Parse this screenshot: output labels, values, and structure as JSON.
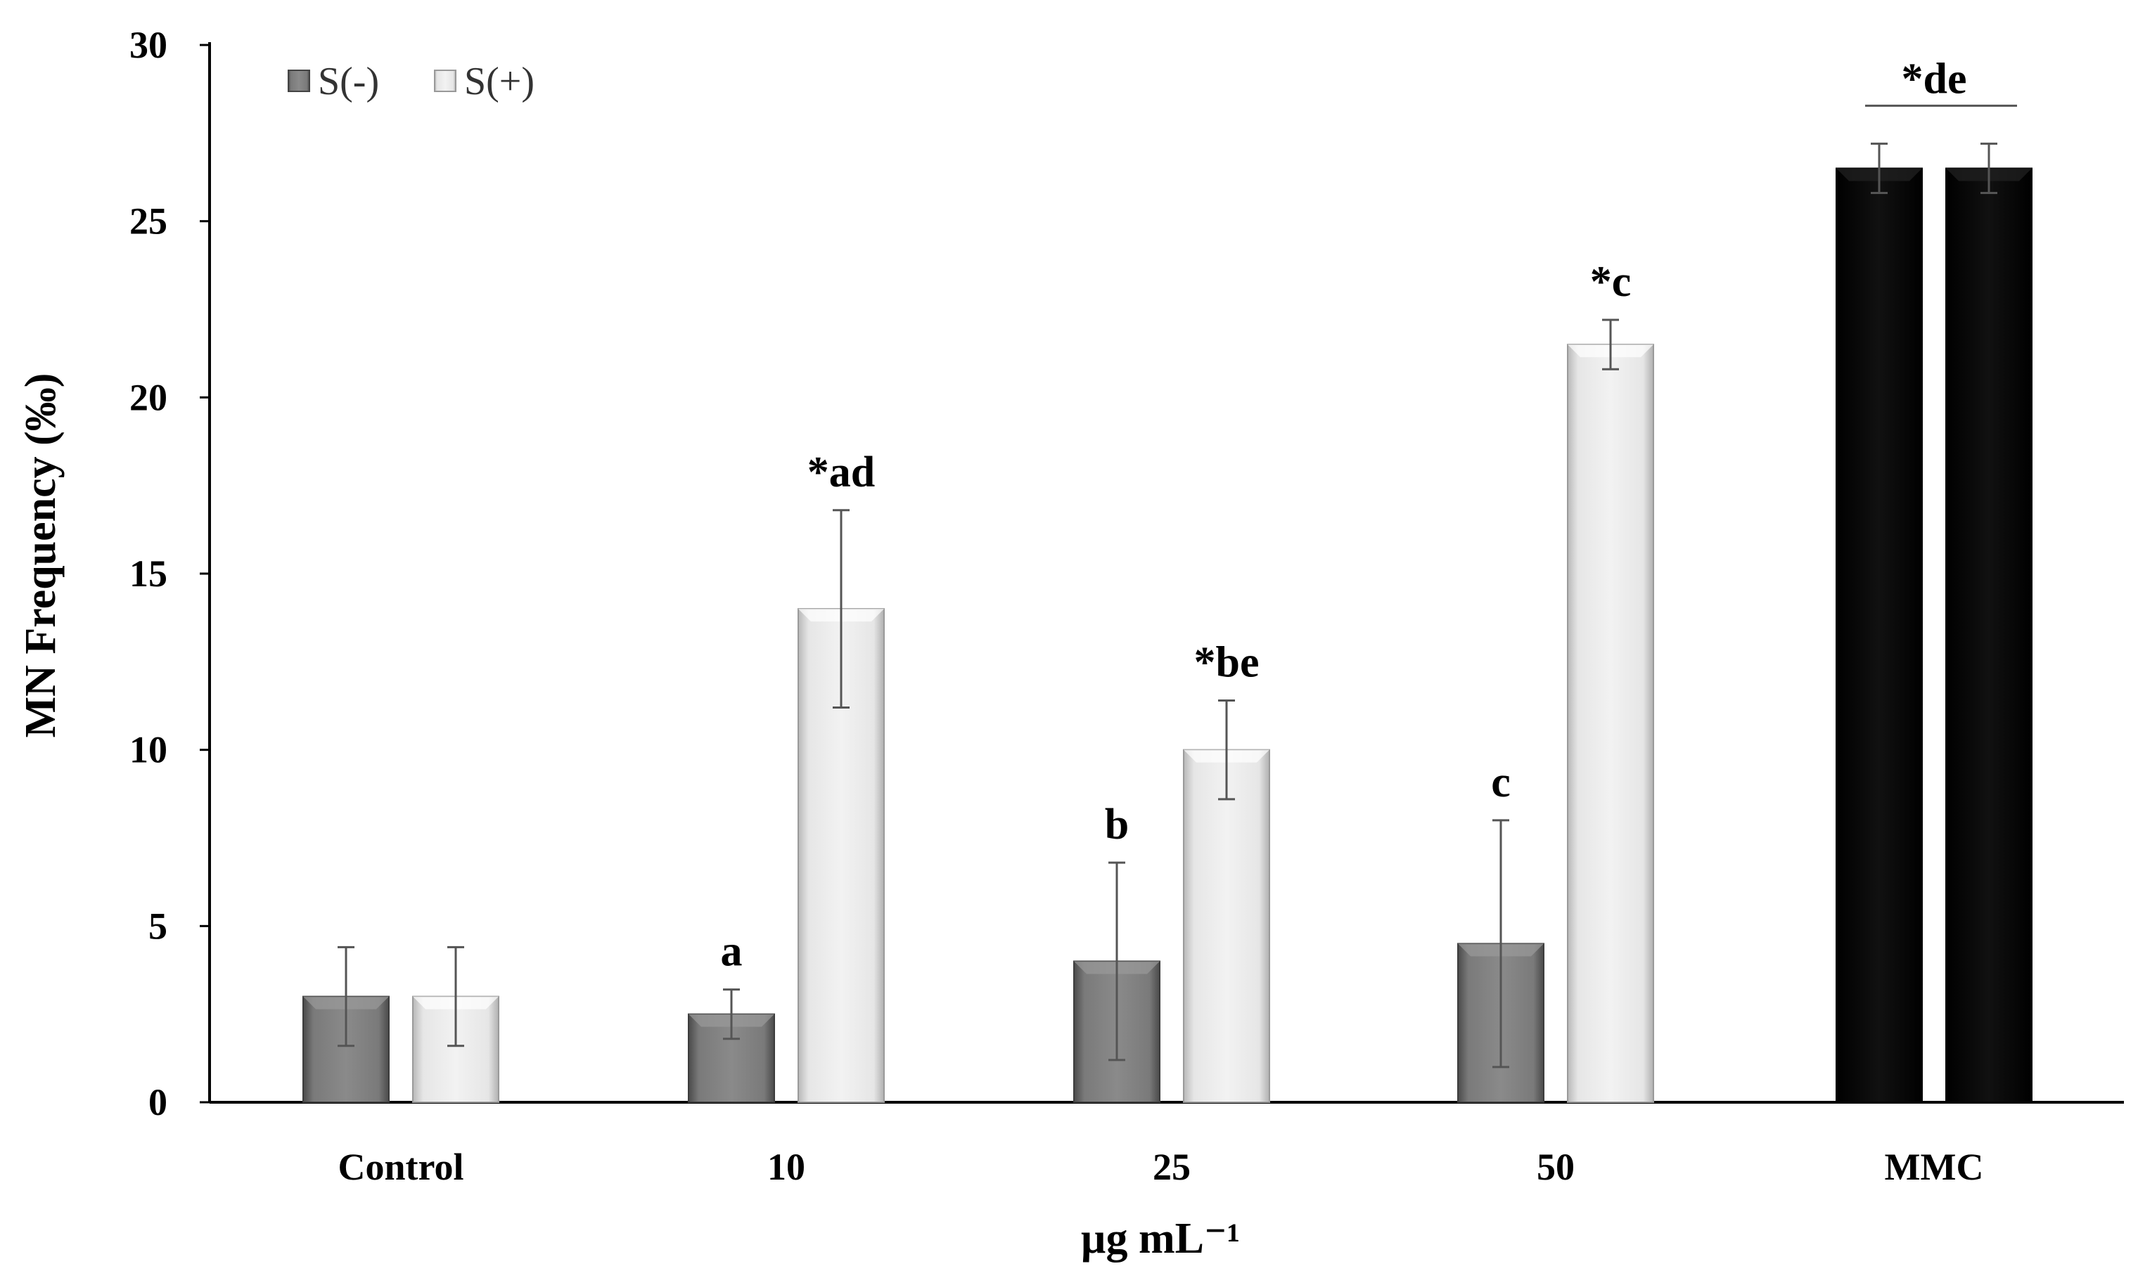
{
  "chart_data": {
    "type": "bar",
    "title": "",
    "xlabel": "µg mL⁻¹",
    "ylabel": "MN Frequency (‰)",
    "ylim": [
      0,
      30
    ],
    "yticks": [
      "0",
      "5",
      "10",
      "15",
      "20",
      "25",
      "30"
    ],
    "categories": [
      "Control",
      "10",
      "25",
      "50",
      "MMC"
    ],
    "legend": {
      "placement": "top-left",
      "entries": [
        "S(-)",
        "S(+)"
      ]
    },
    "grid": false,
    "series": [
      {
        "name": "S(-)",
        "values": [
          3.0,
          2.5,
          4.0,
          4.5,
          26.5
        ],
        "errors": [
          1.4,
          0.7,
          2.8,
          3.5,
          0.7
        ],
        "color": "#6e6e6e"
      },
      {
        "name": "S(+)",
        "values": [
          3.0,
          14.0,
          10.0,
          21.5,
          26.5
        ],
        "errors": [
          1.4,
          2.8,
          1.4,
          0.7,
          0.7
        ],
        "color": "#e4e4e4"
      }
    ],
    "mmc_color": "#000000",
    "significance_labels": [
      {
        "category": "10",
        "series": "S(-)",
        "text": "a"
      },
      {
        "category": "10",
        "series": "S(+)",
        "text": "*ad"
      },
      {
        "category": "25",
        "series": "S(-)",
        "text": "b"
      },
      {
        "category": "25",
        "series": "S(+)",
        "text": "*be"
      },
      {
        "category": "50",
        "series": "S(-)",
        "text": "c"
      },
      {
        "category": "50",
        "series": "S(+)",
        "text": "*c"
      },
      {
        "category": "MMC",
        "series": "both",
        "text": "*de"
      }
    ]
  }
}
